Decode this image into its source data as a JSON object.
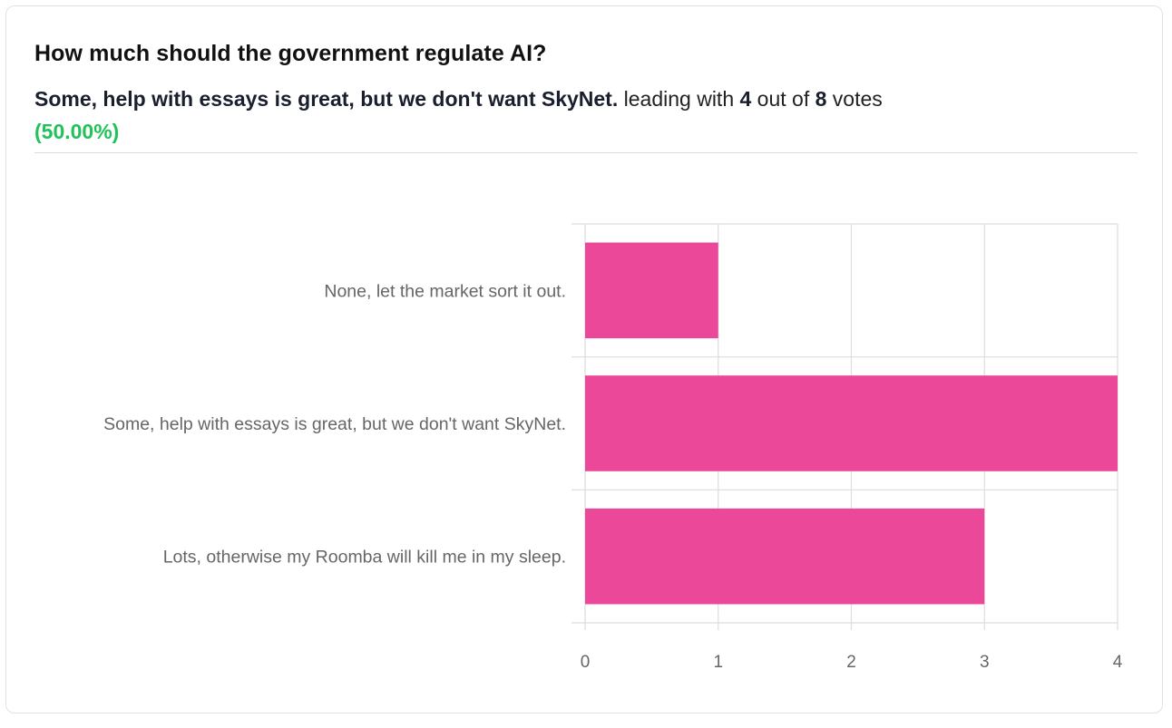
{
  "poll": {
    "question": "How much should the government regulate AI?",
    "leading_option": "Some, help with essays is great, but we don't want SkyNet.",
    "leading_text": " leading with ",
    "leading_votes": "4",
    "out_of_text": " out of ",
    "total_votes": "8",
    "votes_text": " votes",
    "percentage": "(50.00%)"
  },
  "chart_data": {
    "type": "bar",
    "orientation": "horizontal",
    "categories": [
      "None, let the market sort it out.",
      "Some, help with essays is great, but we don't want SkyNet.",
      "Lots, otherwise my Roomba will kill me in my sleep."
    ],
    "values": [
      1,
      4,
      3
    ],
    "xlim": [
      0,
      4
    ],
    "xticks": [
      "0",
      "1",
      "2",
      "3",
      "4"
    ],
    "grid": true,
    "bar_color": "#ec4899"
  }
}
